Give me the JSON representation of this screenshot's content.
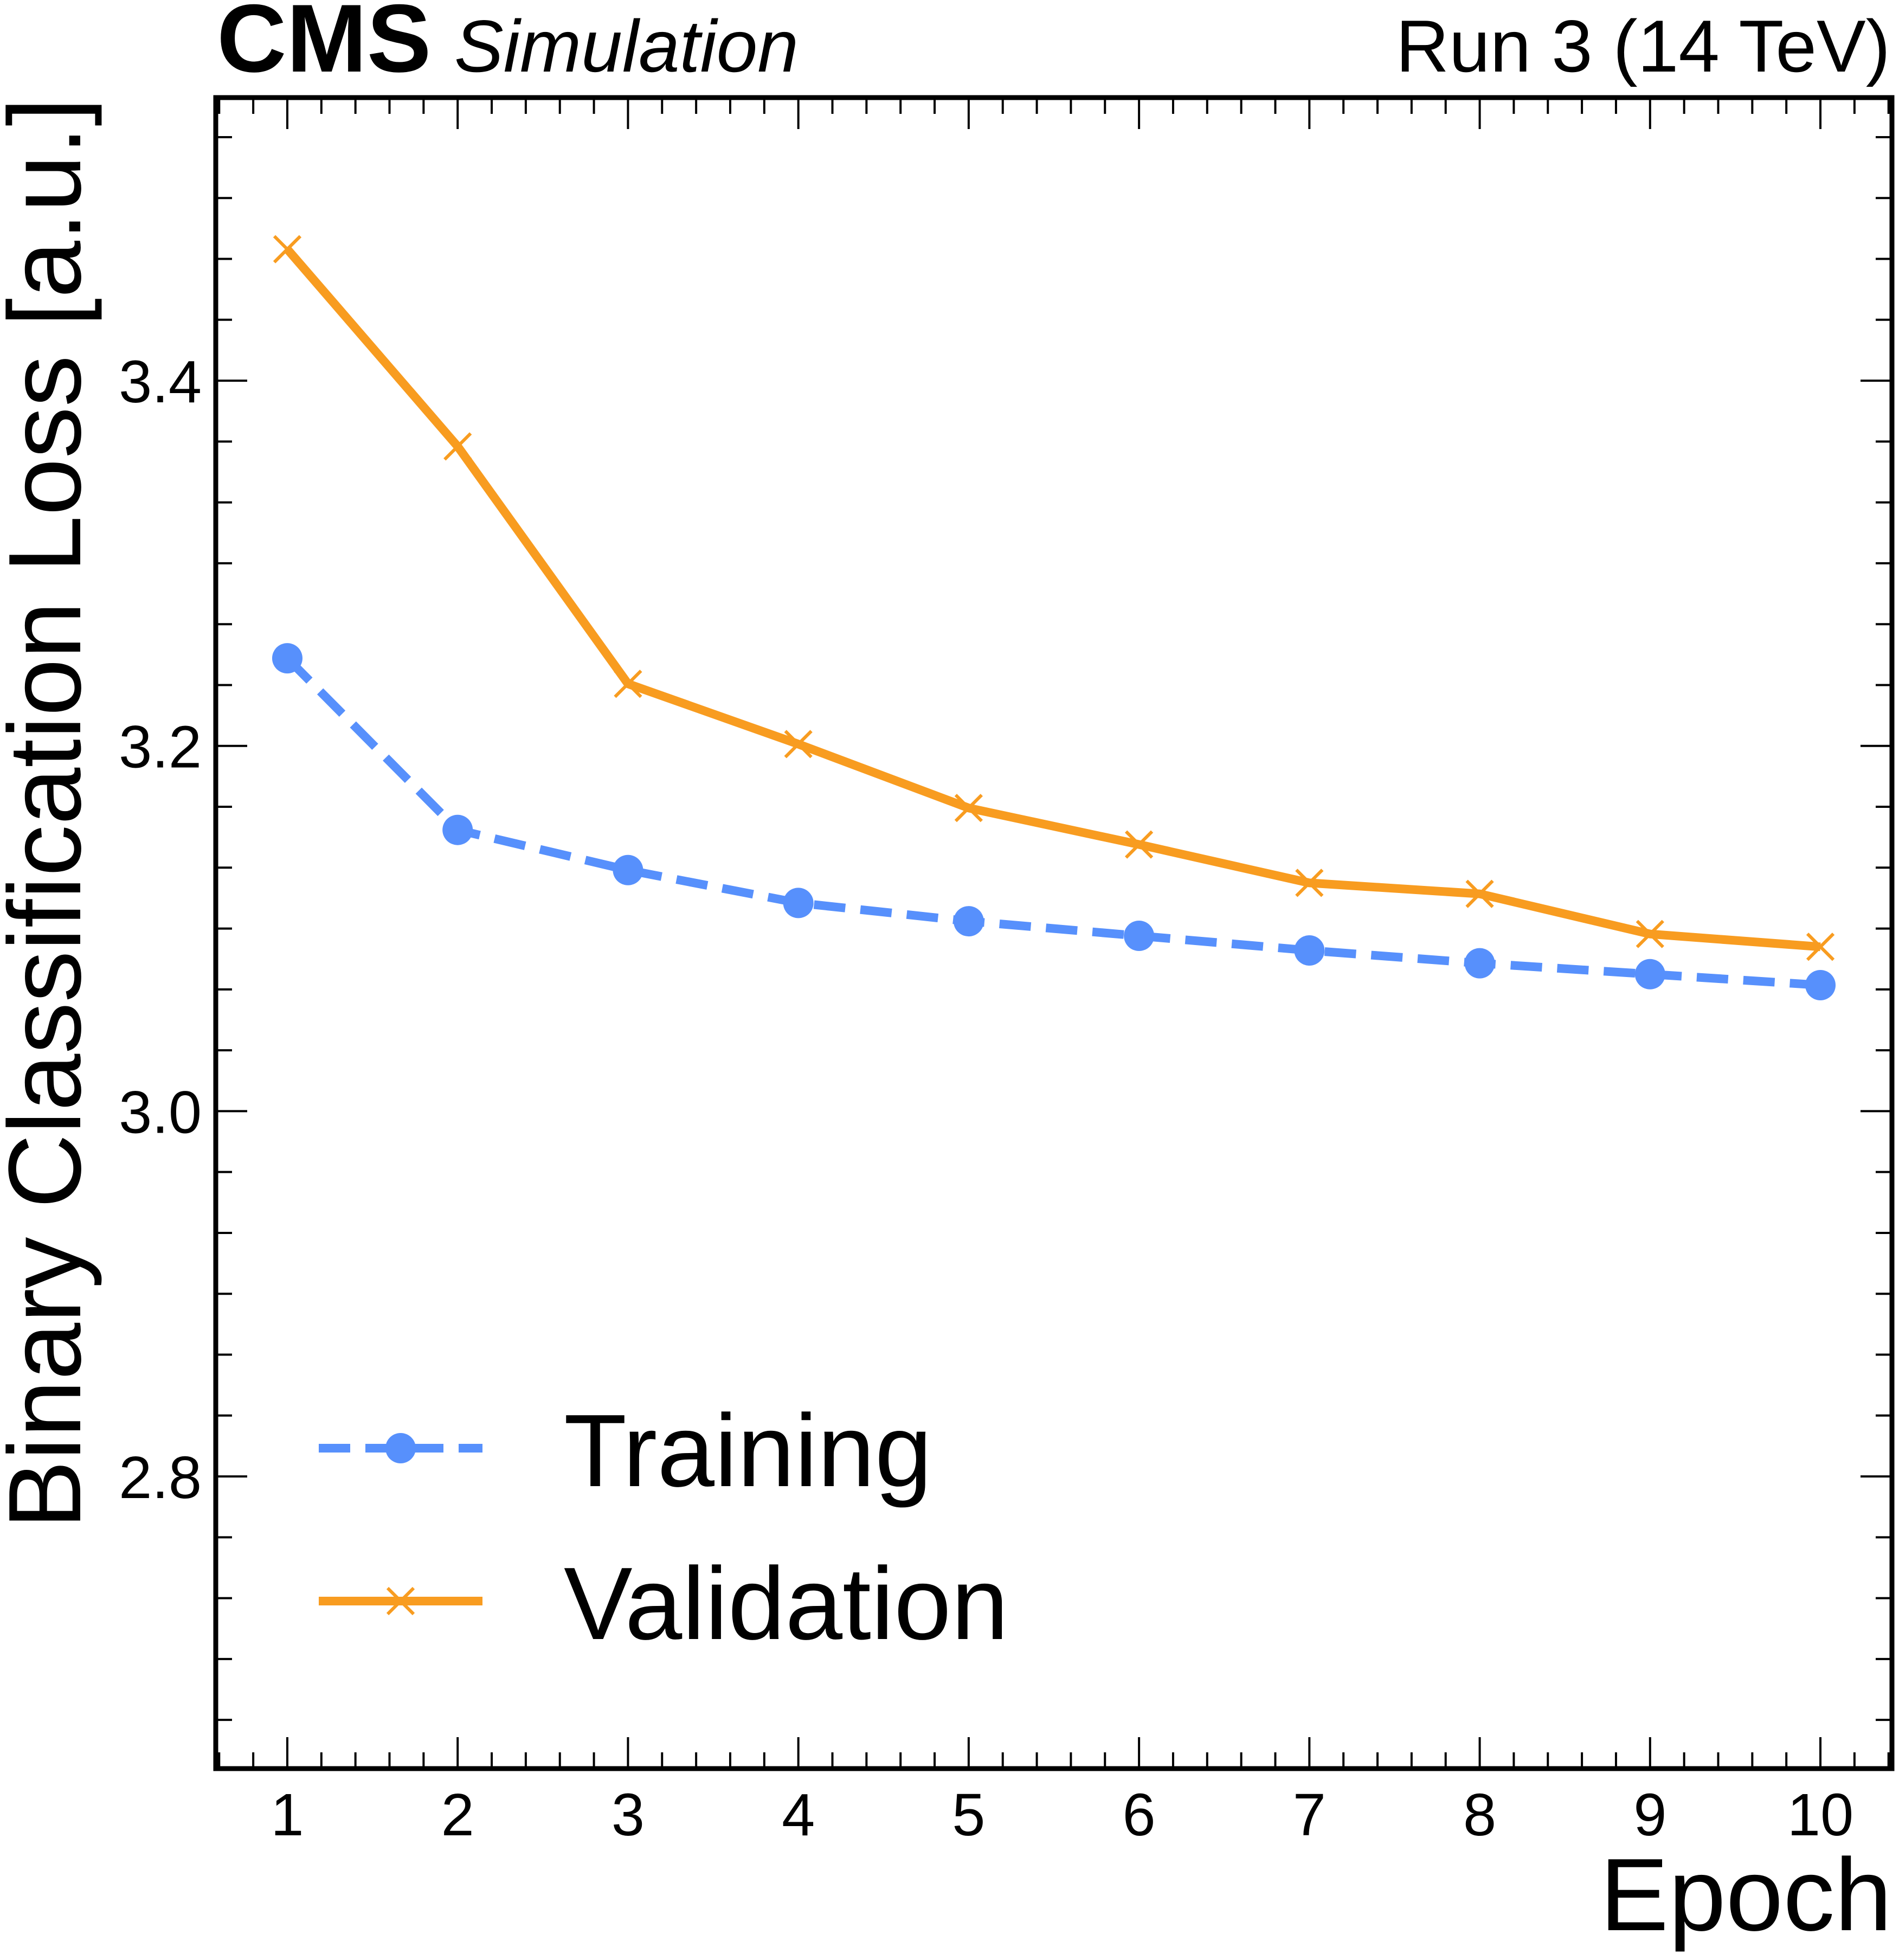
{
  "header": {
    "experiment": "CMS",
    "qualifier": "Simulation",
    "run_info": "Run 3 (14 TeV)"
  },
  "chart_data": {
    "type": "line",
    "title": "",
    "xlabel": "Epoch",
    "ylabel": "Binary Classification Loss [a.u.]",
    "xlim": [
      0.58,
      10.42
    ],
    "ylim": [
      2.64,
      3.555
    ],
    "x": [
      1,
      2,
      3,
      4,
      5,
      6,
      7,
      8,
      9,
      10
    ],
    "x_ticks": [
      1,
      2,
      3,
      4,
      5,
      6,
      7,
      8,
      9,
      10
    ],
    "x_tick_labels": [
      "1",
      "2",
      "3",
      "4",
      "5",
      "6",
      "7",
      "8",
      "9",
      "10"
    ],
    "y_ticks": [
      2.8,
      3.0,
      3.2,
      3.4
    ],
    "y_tick_labels": [
      "2.8",
      "3.0",
      "3.2",
      "3.4"
    ],
    "grid": false,
    "legend_position": "bottom-left",
    "series": [
      {
        "name": "Training",
        "color": "#5790fc",
        "line_style": "dashed",
        "marker": "circle",
        "values": [
          3.248,
          3.154,
          3.132,
          3.114,
          3.104,
          3.096,
          3.088,
          3.081,
          3.075,
          3.069
        ]
      },
      {
        "name": "Validation",
        "color": "#f89c20",
        "line_style": "solid",
        "marker": "x",
        "values": [
          3.472,
          3.364,
          3.234,
          3.201,
          3.166,
          3.146,
          3.125,
          3.119,
          3.097,
          3.09
        ]
      }
    ]
  }
}
